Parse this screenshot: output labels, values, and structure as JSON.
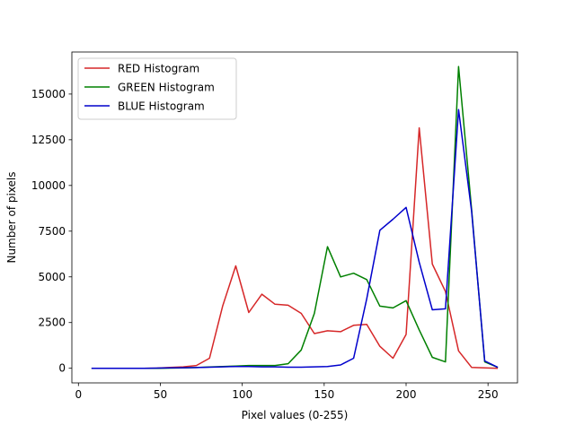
{
  "chart_data": {
    "type": "line",
    "title": "",
    "xlabel": "Pixel values (0-255)",
    "ylabel": "Number of pixels",
    "xlim": [
      -4,
      268
    ],
    "ylim": [
      -800,
      17300
    ],
    "xticks": [
      0,
      50,
      100,
      150,
      200,
      250
    ],
    "yticks": [
      0,
      2500,
      5000,
      7500,
      10000,
      12500,
      15000
    ],
    "grid": false,
    "legend_position": "top-left",
    "x": [
      8,
      16,
      24,
      32,
      40,
      48,
      56,
      64,
      72,
      80,
      88,
      96,
      104,
      112,
      120,
      128,
      136,
      144,
      152,
      160,
      168,
      176,
      184,
      192,
      200,
      208,
      216,
      224,
      232,
      240,
      248,
      256
    ],
    "series": [
      {
        "name": "RED Histogram",
        "color": "#d62728",
        "values": [
          0,
          0,
          0,
          0,
          0,
          10,
          50,
          80,
          150,
          550,
          3400,
          5600,
          3050,
          4050,
          3500,
          3450,
          3000,
          1900,
          2050,
          2000,
          2350,
          2400,
          1200,
          550,
          1850,
          13150,
          5700,
          4200,
          950,
          50,
          20,
          0
        ]
      },
      {
        "name": "GREEN Histogram",
        "color": "#008000",
        "values": [
          0,
          0,
          0,
          0,
          0,
          0,
          10,
          20,
          40,
          70,
          100,
          120,
          150,
          150,
          150,
          250,
          1000,
          3000,
          6650,
          5000,
          5200,
          4850,
          3400,
          3300,
          3700,
          2100,
          600,
          350,
          16500,
          8700,
          350,
          50
        ]
      },
      {
        "name": "BLUE Histogram",
        "color": "#0000cc",
        "values": [
          0,
          0,
          0,
          0,
          0,
          10,
          20,
          30,
          40,
          60,
          80,
          100,
          100,
          80,
          80,
          60,
          60,
          80,
          100,
          180,
          550,
          3800,
          7550,
          8150,
          8800,
          5800,
          3200,
          3250,
          14150,
          8600,
          400,
          50
        ]
      }
    ]
  }
}
